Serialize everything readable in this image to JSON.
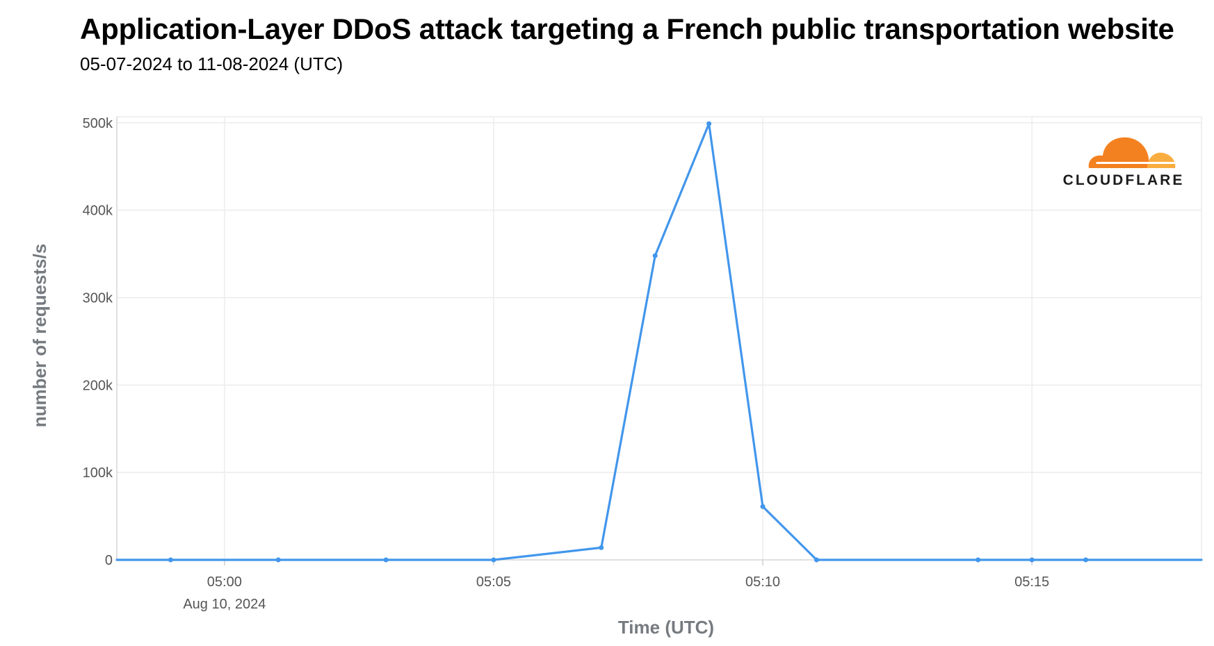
{
  "chart_data": {
    "type": "line",
    "title": "Application-Layer DDoS attack targeting a French public transportation website",
    "subtitle": "05-07-2024 to 11-08-2024 (UTC)",
    "xlabel": "Time (UTC)",
    "ylabel": "number of requests/s",
    "x_tick_labels": [
      "05:00",
      "05:05",
      "05:10",
      "05:15"
    ],
    "x_tick_minutes": [
      0,
      5,
      10,
      15
    ],
    "x_date_label": "Aug 10, 2024",
    "y_tick_labels": [
      "0",
      "100k",
      "200k",
      "300k",
      "400k",
      "500k"
    ],
    "y_tick_values": [
      0,
      100000,
      200000,
      300000,
      400000,
      500000
    ],
    "xlim_minutes": [
      -2,
      18.15
    ],
    "ylim": [
      0,
      507000
    ],
    "grid": true,
    "series": [
      {
        "color": "#4296ec",
        "x_minutes": [
          -1,
          1,
          3,
          5,
          7,
          8,
          9,
          10,
          11,
          14,
          15,
          16
        ],
        "values": [
          0,
          0,
          0,
          0,
          14000,
          348000,
          499000,
          61000,
          0,
          0,
          0,
          0
        ],
        "line_extends_to_axis_edges": true
      }
    ],
    "logo": {
      "text": "CLOUDFLARE",
      "colors": [
        "#f48120",
        "#faad3f"
      ]
    }
  }
}
